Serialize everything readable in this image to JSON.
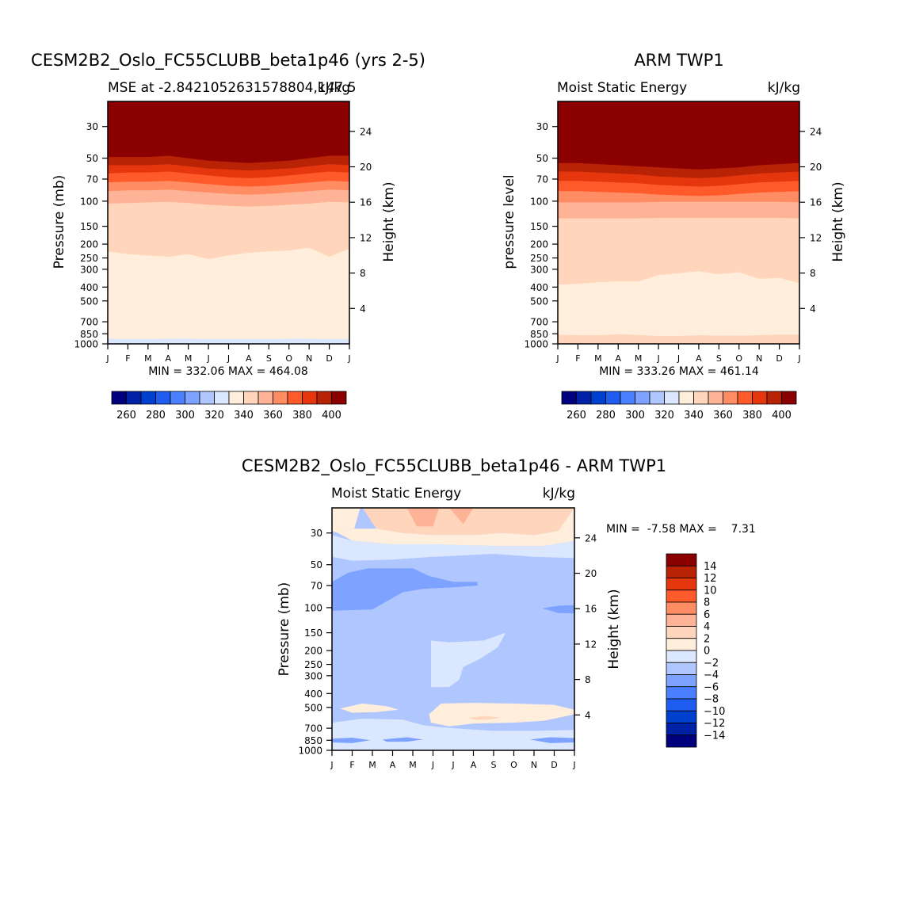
{
  "colors": {
    "mse_levels": [
      "#00007f",
      "#0021a6",
      "#0040ce",
      "#1f5cf0",
      "#4a80ff",
      "#7ea2ff",
      "#afc6ff",
      "#dbe7ff",
      "#ffeedb",
      "#ffd5bc",
      "#ffb396",
      "#ff8c63",
      "#ff5a2a",
      "#e5360d",
      "#b82306",
      "#8b0000"
    ],
    "diff_levels": [
      "#00007f",
      "#0021a6",
      "#0040ce",
      "#1f5cf0",
      "#4a80ff",
      "#7ea2ff",
      "#afc6ff",
      "#dbe7ff",
      "#ffeedb",
      "#ffd5bc",
      "#ffb396",
      "#ff8c63",
      "#ff5a2a",
      "#e5360d",
      "#b82306",
      "#8b0000"
    ]
  },
  "panel_left": {
    "title": "CESM2B2_Oslo_FC55CLUBB_beta1p46 (yrs 2-5)",
    "subtitle_left": "MSE at -2.8421052631578804,147.5",
    "subtitle_right": "kJ/kg",
    "ylabel": "Pressure (mb)",
    "ylabel_right": "Height (km)",
    "stats": "MIN = 332.06 MAX = 464.08"
  },
  "panel_right": {
    "title": "ARM TWP1",
    "subtitle_left": "Moist Static Energy",
    "subtitle_right": "kJ/kg",
    "ylabel": "pressure level",
    "ylabel_right": "Height (km)",
    "stats": "MIN = 333.26 MAX = 461.14"
  },
  "panel_diff": {
    "title": "CESM2B2_Oslo_FC55CLUBB_beta1p46 - ARM TWP1",
    "subtitle_left": "Moist Static Energy",
    "subtitle_right": "kJ/kg",
    "ylabel": "Pressure (mb)",
    "ylabel_right": "Height (km)",
    "stats": "MIN =  -7.58 MAX =    7.31"
  },
  "chart_data": [
    {
      "type": "heatmap",
      "name_ref": "panel_left",
      "x_ticks": [
        "J",
        "F",
        "M",
        "A",
        "M",
        "J",
        "J",
        "A",
        "S",
        "O",
        "N",
        "D",
        "J"
      ],
      "y_ticks": [
        30,
        50,
        70,
        100,
        150,
        200,
        250,
        300,
        400,
        500,
        700,
        850,
        1000
      ],
      "y_scale": "log",
      "y_range": [
        1000,
        20
      ],
      "height_ticks": [
        4,
        8,
        12,
        16,
        20,
        24
      ],
      "contour_levels": [
        250,
        260,
        270,
        280,
        290,
        300,
        310,
        320,
        330,
        340,
        350,
        360,
        370,
        380,
        390,
        400
      ],
      "boundaries": [
        {
          "lower": 330,
          "upper": 340,
          "p": [
            225,
            235,
            240,
            245,
            235,
            255,
            240,
            230,
            225,
            222,
            212,
            245,
            215
          ]
        },
        {
          "lower": 340,
          "upper": 350,
          "p": [
            104,
            103,
            102,
            101,
            103,
            106,
            108,
            109,
            108,
            106,
            104,
            101,
            102
          ]
        },
        {
          "lower": 350,
          "upper": 360,
          "p": [
            85,
            84,
            84,
            83,
            85,
            87,
            89,
            90,
            89,
            87,
            85,
            83,
            84
          ]
        },
        {
          "lower": 360,
          "upper": 370,
          "p": [
            74,
            73,
            73,
            72,
            74,
            76,
            78,
            79,
            78,
            76,
            74,
            72,
            73
          ]
        },
        {
          "lower": 370,
          "upper": 380,
          "p": [
            64,
            63,
            63,
            62,
            64,
            66,
            68,
            69,
            68,
            66,
            64,
            62,
            63
          ]
        },
        {
          "lower": 380,
          "upper": 390,
          "p": [
            56,
            56,
            56,
            55,
            57,
            59,
            60,
            61,
            60,
            59,
            57,
            55,
            56
          ]
        },
        {
          "lower": 390,
          "upper": 400,
          "p": [
            49,
            49,
            49,
            48,
            50,
            52,
            53,
            54,
            53,
            52,
            50,
            48,
            48
          ]
        }
      ],
      "surface_band": {
        "lower": 320,
        "upper": 330,
        "p": [
          920,
          925,
          925,
          920,
          920,
          925,
          925,
          925,
          925,
          920,
          920,
          925,
          925
        ]
      },
      "colorbar_labels": [
        "260",
        "280",
        "300",
        "320",
        "340",
        "360",
        "380",
        "400"
      ]
    },
    {
      "type": "heatmap",
      "name_ref": "panel_right",
      "x_ticks": [
        "J",
        "F",
        "M",
        "A",
        "M",
        "J",
        "J",
        "A",
        "S",
        "O",
        "N",
        "D",
        "J"
      ],
      "y_ticks": [
        30,
        50,
        70,
        100,
        150,
        200,
        250,
        300,
        400,
        500,
        700,
        850,
        1000
      ],
      "y_scale": "log",
      "y_range": [
        1000,
        20
      ],
      "height_ticks": [
        4,
        8,
        12,
        16,
        20,
        24
      ],
      "contour_levels": [
        250,
        260,
        270,
        280,
        290,
        300,
        310,
        320,
        330,
        340,
        350,
        360,
        370,
        380,
        390,
        400
      ],
      "boundaries": [
        {
          "lower": 330,
          "upper": 340,
          "p": [
            385,
            380,
            370,
            365,
            365,
            330,
            320,
            310,
            325,
            315,
            350,
            345,
            375
          ]
        },
        {
          "lower": 340,
          "upper": 350,
          "p": [
            132,
            132,
            132,
            132,
            132,
            131,
            131,
            131,
            131,
            131,
            131,
            131,
            132
          ]
        },
        {
          "lower": 350,
          "upper": 360,
          "p": [
            102,
            102,
            102,
            102,
            102,
            101,
            101,
            101,
            101,
            101,
            101,
            101,
            102
          ]
        },
        {
          "lower": 360,
          "upper": 370,
          "p": [
            85,
            85,
            86,
            87,
            88,
            90,
            91,
            92,
            91,
            89,
            87,
            86,
            85
          ]
        },
        {
          "lower": 370,
          "upper": 380,
          "p": [
            72,
            72,
            73,
            74,
            75,
            77,
            78,
            79,
            78,
            76,
            74,
            73,
            72
          ]
        },
        {
          "lower": 380,
          "upper": 390,
          "p": [
            62,
            62,
            63,
            64,
            65,
            67,
            68,
            69,
            68,
            66,
            64,
            63,
            62
          ]
        },
        {
          "lower": 390,
          "upper": 400,
          "p": [
            54,
            54,
            55,
            56,
            57,
            58,
            59,
            60,
            59,
            58,
            56,
            55,
            54
          ]
        }
      ],
      "surface_band": {
        "lower": 340,
        "upper": 350,
        "p": [
          860,
          870,
          870,
          855,
          865,
          880,
          880,
          870,
          875,
          875,
          870,
          860,
          860
        ]
      },
      "colorbar_labels": [
        "260",
        "280",
        "300",
        "320",
        "340",
        "360",
        "380",
        "400"
      ]
    },
    {
      "type": "heatmap",
      "name_ref": "panel_diff",
      "x_ticks": [
        "J",
        "F",
        "M",
        "A",
        "M",
        "J",
        "J",
        "A",
        "S",
        "O",
        "N",
        "D",
        "J"
      ],
      "y_ticks": [
        30,
        50,
        70,
        100,
        150,
        200,
        250,
        300,
        400,
        500,
        700,
        850,
        1000
      ],
      "y_scale": "log",
      "y_range": [
        1000,
        20
      ],
      "height_ticks": [
        4,
        8,
        12,
        16,
        20,
        24
      ],
      "contour_levels": [
        -14,
        -12,
        -10,
        -8,
        -6,
        -4,
        -2,
        0,
        2,
        4,
        6,
        8,
        10,
        12,
        14
      ],
      "background_level": -3,
      "regions": [
        {
          "value": 1,
          "points": [
            [
              0,
              20
            ],
            [
              1.4,
              20
            ],
            [
              1.1,
              28
            ],
            [
              0.3,
              30
            ],
            [
              0,
              29
            ]
          ]
        },
        {
          "value": 3,
          "points": [
            [
              1.5,
              20
            ],
            [
              12,
              20
            ],
            [
              11.2,
              29
            ],
            [
              10,
              31
            ],
            [
              8.5,
              30
            ],
            [
              7,
              31
            ],
            [
              5,
              31
            ],
            [
              3.5,
              30
            ],
            [
              2.2,
              28
            ]
          ]
        },
        {
          "value": 1,
          "points": [
            [
              1.1,
              28
            ],
            [
              2.2,
              28
            ],
            [
              3.5,
              30
            ],
            [
              5,
              31
            ],
            [
              7,
              31
            ],
            [
              8.5,
              30
            ],
            [
              10,
              31
            ],
            [
              11.2,
              29
            ],
            [
              12,
              20
            ],
            [
              12,
              34
            ],
            [
              10.5,
              37
            ],
            [
              8,
              37
            ],
            [
              5,
              36
            ],
            [
              3,
              36
            ],
            [
              1,
              34
            ],
            [
              0.3,
              30
            ]
          ]
        },
        {
          "value": 5,
          "points": [
            [
              3.7,
              20
            ],
            [
              5.3,
              20
            ],
            [
              5,
              27
            ],
            [
              4.2,
              27
            ]
          ]
        },
        {
          "value": 5,
          "points": [
            [
              5.8,
              20
            ],
            [
              7,
              20
            ],
            [
              6.5,
              26
            ]
          ]
        },
        {
          "value": -1,
          "points": [
            [
              0,
              31
            ],
            [
              1,
              34
            ],
            [
              3,
              36
            ],
            [
              5,
              36
            ],
            [
              8,
              37
            ],
            [
              10.5,
              37
            ],
            [
              12,
              34
            ],
            [
              12,
              45
            ],
            [
              10,
              44
            ],
            [
              8,
              42
            ],
            [
              5,
              44
            ],
            [
              3,
              46
            ],
            [
              1,
              47
            ],
            [
              0,
              44
            ]
          ]
        },
        {
          "value": -5,
          "points": [
            [
              0,
              66
            ],
            [
              0.8,
              57
            ],
            [
              1.8,
              53
            ],
            [
              4,
              53
            ],
            [
              4.8,
              60
            ],
            [
              6,
              66
            ],
            [
              7.2,
              66
            ],
            [
              7.2,
              70
            ],
            [
              6,
              72
            ],
            [
              4.5,
              74
            ],
            [
              3.5,
              78
            ],
            [
              2,
              103
            ],
            [
              0,
              105
            ]
          ]
        },
        {
          "value": -5,
          "points": [
            [
              10.4,
              101
            ],
            [
              11.2,
              97
            ],
            [
              12,
              96
            ],
            [
              12,
              110
            ],
            [
              11.2,
              109
            ]
          ]
        },
        {
          "value": -1,
          "points": [
            [
              4.9,
              170
            ],
            [
              5.8,
              175
            ],
            [
              7.5,
              170
            ],
            [
              8.6,
              150
            ],
            [
              8.2,
              190
            ],
            [
              7.3,
              230
            ],
            [
              6.5,
              260
            ],
            [
              6.3,
              320
            ],
            [
              5.8,
              360
            ],
            [
              4.9,
              360
            ]
          ]
        },
        {
          "value": 1,
          "points": [
            [
              0.4,
              510
            ],
            [
              1.5,
              470
            ],
            [
              2.7,
              490
            ],
            [
              3.3,
              520
            ],
            [
              2.2,
              540
            ],
            [
              1,
              545
            ]
          ]
        },
        {
          "value": 1,
          "points": [
            [
              4.8,
              560
            ],
            [
              5.4,
              470
            ],
            [
              7,
              465
            ],
            [
              9,
              470
            ],
            [
              11,
              480
            ],
            [
              12,
              520
            ],
            [
              12,
              560
            ],
            [
              10.5,
              620
            ],
            [
              9,
              640
            ],
            [
              7,
              650
            ],
            [
              5.8,
              680
            ],
            [
              4.9,
              640
            ]
          ]
        },
        {
          "value": 3,
          "points": [
            [
              6.8,
              590
            ],
            [
              7.5,
              575
            ],
            [
              8.4,
              590
            ],
            [
              7.7,
              610
            ],
            [
              7,
              610
            ]
          ]
        },
        {
          "value": -1,
          "points": [
            [
              0,
              640
            ],
            [
              1.5,
              600
            ],
            [
              3.5,
              610
            ],
            [
              4.6,
              670
            ],
            [
              6,
              700
            ],
            [
              8,
              730
            ],
            [
              10,
              730
            ],
            [
              12,
              720
            ],
            [
              12,
              1000
            ],
            [
              0,
              1000
            ]
          ]
        },
        {
          "value": -5,
          "points": [
            [
              0,
              830
            ],
            [
              1,
              815
            ],
            [
              1.9,
              850
            ],
            [
              1,
              890
            ],
            [
              0,
              880
            ]
          ]
        },
        {
          "value": -5,
          "points": [
            [
              2.5,
              840
            ],
            [
              3.7,
              810
            ],
            [
              4.5,
              840
            ],
            [
              3.7,
              870
            ],
            [
              2.7,
              870
            ]
          ]
        },
        {
          "value": -5,
          "points": [
            [
              9.8,
              840
            ],
            [
              10.8,
              810
            ],
            [
              12,
              820
            ],
            [
              12,
              880
            ],
            [
              10.8,
              890
            ]
          ]
        }
      ],
      "colorbar_labels": [
        "14",
        "12",
        "10",
        "8",
        "6",
        "4",
        "2",
        "0",
        "−2",
        "−4",
        "−6",
        "−8",
        "−10",
        "−12",
        "−14"
      ]
    }
  ]
}
